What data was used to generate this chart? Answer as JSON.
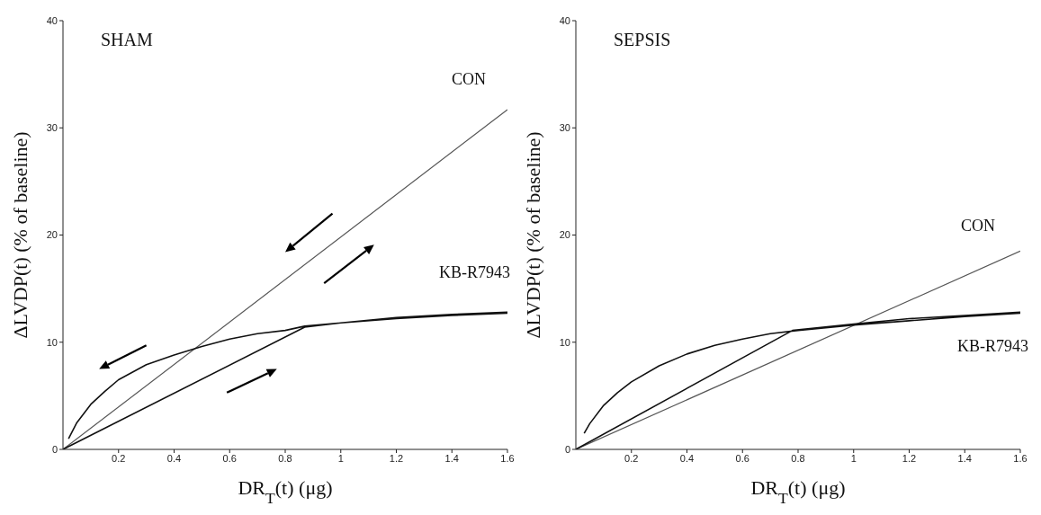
{
  "chart_data": [
    {
      "type": "line",
      "title": "SHAM",
      "xlabel": "DR$_{T}$(t) (μg)",
      "ylabel": "ΔLVDP(t) (% of baseline)",
      "xlim": [
        0,
        1.6
      ],
      "ylim": [
        0,
        40
      ],
      "xticks": [
        0.2,
        0.4,
        0.6,
        0.8,
        1,
        1.2,
        1.4,
        1.6
      ],
      "yticks": [
        0,
        10,
        20,
        30,
        40
      ],
      "marker": "none",
      "line_style": "solid",
      "series": [
        {
          "name": "CON",
          "color": "#555555",
          "x": [
            0,
            1.6
          ],
          "values": [
            0,
            31.7
          ]
        },
        {
          "name": "KB-R7943",
          "color": "#111111",
          "x": [
            0,
            0.87,
            1.0,
            1.2,
            1.4,
            1.6,
            1.6,
            1.4,
            1.2,
            1.0,
            0.87,
            0.8,
            0.7,
            0.6,
            0.5,
            0.4,
            0.3,
            0.2,
            0.15,
            0.1,
            0.05,
            0.02
          ],
          "values": [
            0,
            11.4,
            11.8,
            12.3,
            12.6,
            12.8,
            12.7,
            12.5,
            12.2,
            11.8,
            11.5,
            11.1,
            10.8,
            10.3,
            9.6,
            8.8,
            7.9,
            6.5,
            5.4,
            4.2,
            2.5,
            1.0
          ]
        }
      ]
    },
    {
      "type": "line",
      "title": "SEPSIS",
      "xlabel": "DR$_{T}$(t) (μg)",
      "ylabel": "ΔLVDP(t) (% of baseline)",
      "xlim": [
        0,
        1.6
      ],
      "ylim": [
        0,
        40
      ],
      "xticks": [
        0.2,
        0.4,
        0.6,
        0.8,
        1,
        1.2,
        1.4,
        1.6
      ],
      "yticks": [
        0,
        10,
        20,
        30,
        40
      ],
      "marker": "none",
      "line_style": "solid",
      "series": [
        {
          "name": "CON",
          "color": "#555555",
          "x": [
            0,
            1.6
          ],
          "values": [
            0,
            18.5
          ]
        },
        {
          "name": "KB-R7943",
          "color": "#111111",
          "x": [
            0,
            0.78,
            1.0,
            1.2,
            1.4,
            1.6,
            1.6,
            1.4,
            1.2,
            1.0,
            0.8,
            0.7,
            0.6,
            0.5,
            0.4,
            0.3,
            0.2,
            0.15,
            0.1,
            0.05,
            0.03
          ],
          "values": [
            0,
            11.1,
            11.7,
            12.2,
            12.5,
            12.8,
            12.7,
            12.4,
            12.0,
            11.6,
            11.1,
            10.8,
            10.3,
            9.7,
            8.9,
            7.8,
            6.3,
            5.3,
            4.1,
            2.4,
            1.5
          ]
        }
      ]
    }
  ]
}
